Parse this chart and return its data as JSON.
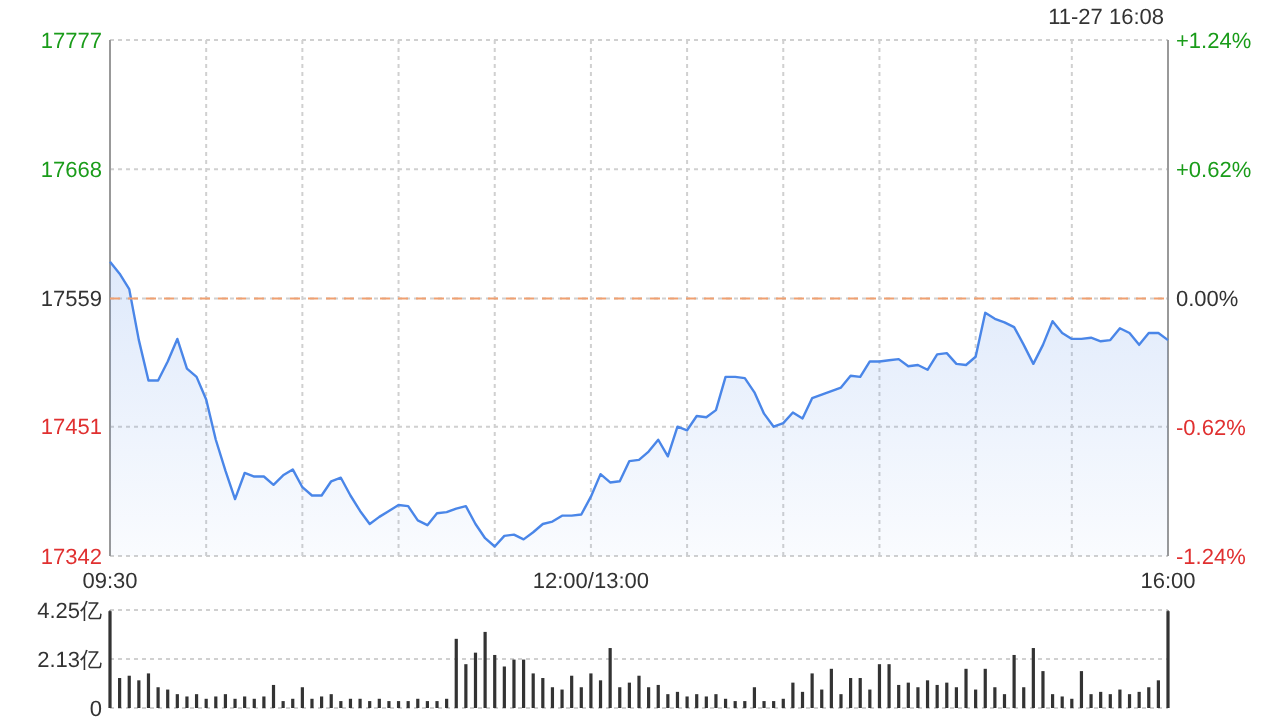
{
  "chart_data": [
    {
      "type": "area",
      "subtitle": "11-27 16:08",
      "categories": [
        "09:30",
        null,
        null,
        null,
        null,
        null,
        null,
        null,
        null,
        null,
        null,
        null,
        null,
        null,
        null,
        null,
        null,
        null,
        null,
        null,
        null,
        null,
        null,
        null,
        null,
        null,
        null,
        null,
        null,
        null,
        null,
        null,
        null,
        null,
        null,
        null,
        null,
        null,
        null,
        null,
        null,
        null,
        null,
        null,
        null,
        null,
        null,
        null,
        null,
        null,
        "12:00/13:00",
        null,
        null,
        null,
        null,
        null,
        null,
        null,
        null,
        null,
        null,
        null,
        null,
        null,
        null,
        null,
        null,
        null,
        null,
        null,
        null,
        null,
        null,
        null,
        null,
        null,
        null,
        null,
        null,
        null,
        null,
        null,
        null,
        null,
        null,
        null,
        null,
        null,
        null,
        null,
        null,
        null,
        null,
        null,
        null,
        null,
        null,
        null,
        null,
        null,
        null,
        null,
        null,
        null,
        null,
        null,
        null,
        null,
        null,
        null,
        "16:00"
      ],
      "ylim": [
        17342,
        17777
      ],
      "yticks": [
        17342,
        17451,
        17559,
        17668,
        17777
      ],
      "y2lim": [
        -1.24,
        1.24
      ],
      "y2ticks": [
        {
          "value": -1.24,
          "label": "-1.24%"
        },
        {
          "value": -0.62,
          "label": "-0.62%"
        },
        {
          "value": 0,
          "label": "0.00%"
        },
        {
          "value": 0.62,
          "label": "+0.62%"
        },
        {
          "value": 1.24,
          "label": "+1.24%"
        }
      ],
      "grid": true,
      "ref_lines": [
        {
          "axis": "y",
          "value": 17559,
          "color": "#f0a070",
          "line_style": "dashed"
        }
      ],
      "series": [
        {
          "color": "#4a86e8",
          "values": [
            17590,
            17580,
            17567,
            17524,
            17490,
            17490,
            17506,
            17525,
            17500,
            17493,
            17474,
            17440,
            17414,
            17390,
            17412,
            17409,
            17409,
            17402,
            17410,
            17415,
            17400,
            17393,
            17393,
            17405,
            17408,
            17393,
            17380,
            17369,
            17375,
            17380,
            17385,
            17384,
            17372,
            17368,
            17378,
            17379,
            17382,
            17384,
            17369,
            17357,
            17350,
            17359,
            17360,
            17356,
            17362,
            17369,
            17371,
            17376,
            17376,
            17377,
            17392,
            17411,
            17404,
            17405,
            17422,
            17423,
            17430,
            17440,
            17426,
            17451,
            17448,
            17460,
            17459,
            17465,
            17493,
            17493,
            17492,
            17480,
            17462,
            17451,
            17454,
            17463,
            17458,
            17475,
            17478,
            17481,
            17484,
            17494,
            17493,
            17506,
            17506,
            17507,
            17508,
            17502,
            17503,
            17499,
            17512,
            17513,
            17504,
            17503,
            17510,
            17547,
            17542,
            17539,
            17535,
            17520,
            17504,
            17520,
            17540,
            17530,
            17525,
            17525,
            17526,
            17523,
            17524,
            17534,
            17530,
            17520,
            17530,
            17530,
            17524
          ]
        }
      ]
    },
    {
      "type": "bar",
      "tick_labels": "y",
      "grid": "y",
      "ylim": [
        0,
        4.25
      ],
      "yticks": [
        0,
        {
          "value": 2.13,
          "label": "2.13亿"
        },
        {
          "value": 4.25,
          "label": "4.25亿"
        }
      ],
      "categories": [
        null,
        null,
        null,
        null,
        null,
        null,
        null,
        null,
        null,
        null,
        null,
        null,
        null,
        null,
        null,
        null,
        null,
        null,
        null,
        null,
        null,
        null,
        null,
        null,
        null,
        null,
        null,
        null,
        null,
        null,
        null,
        null,
        null,
        null,
        null,
        null,
        null,
        null,
        null,
        null,
        null,
        null,
        null,
        null,
        null,
        null,
        null,
        null,
        null,
        null,
        null,
        null,
        null,
        null,
        null,
        null,
        null,
        null,
        null,
        null,
        null,
        null,
        null,
        null,
        null,
        null,
        null,
        null,
        null,
        null,
        null,
        null,
        null,
        null,
        null,
        null,
        null,
        null,
        null,
        null,
        null,
        null,
        null,
        null,
        null,
        null,
        null,
        null,
        null,
        null,
        null,
        null,
        null,
        null,
        null,
        null,
        null,
        null,
        null,
        null,
        null,
        null,
        null,
        null,
        null,
        null,
        null,
        null,
        null,
        null,
        null
      ],
      "series": [
        {
          "color": "#333333",
          "values": [
            4.2,
            1.3,
            1.4,
            1.2,
            1.5,
            0.9,
            0.8,
            0.6,
            0.5,
            0.6,
            0.4,
            0.5,
            0.6,
            0.4,
            0.5,
            0.4,
            0.5,
            1.0,
            0.3,
            0.4,
            0.9,
            0.4,
            0.5,
            0.6,
            0.3,
            0.4,
            0.4,
            0.3,
            0.4,
            0.3,
            0.3,
            0.3,
            0.4,
            0.3,
            0.3,
            0.4,
            3.0,
            1.9,
            2.4,
            3.3,
            2.3,
            1.8,
            2.1,
            2.1,
            1.5,
            1.3,
            0.9,
            0.8,
            1.4,
            0.9,
            1.5,
            1.2,
            2.6,
            0.9,
            1.1,
            1.4,
            0.9,
            1.0,
            0.6,
            0.7,
            0.5,
            0.6,
            0.5,
            0.6,
            0.4,
            0.3,
            0.3,
            0.9,
            0.3,
            0.3,
            0.4,
            1.1,
            0.7,
            1.5,
            0.8,
            1.7,
            0.6,
            1.3,
            1.3,
            0.8,
            1.9,
            1.9,
            1.0,
            1.1,
            0.9,
            1.2,
            1.0,
            1.1,
            0.9,
            1.7,
            0.8,
            1.7,
            0.9,
            0.6,
            2.3,
            0.9,
            2.6,
            1.6,
            0.6,
            0.5,
            0.4,
            1.6,
            0.6,
            0.7,
            0.6,
            0.8,
            0.6,
            0.7,
            0.9,
            1.2,
            4.2
          ]
        }
      ]
    }
  ]
}
